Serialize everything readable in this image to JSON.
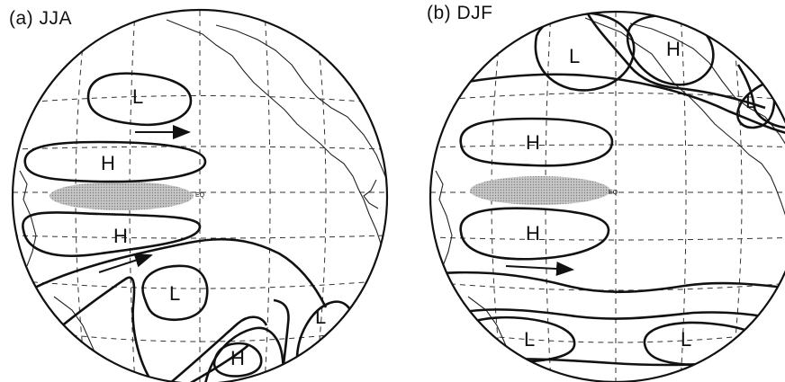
{
  "panels": [
    {
      "title": "(a) JJA",
      "highs": [
        "H",
        "H",
        "H"
      ],
      "lows": [
        "L",
        "L",
        "L"
      ],
      "equator_label": "EQ"
    },
    {
      "title": "(b) DJF",
      "highs": [
        "H",
        "H",
        "H"
      ],
      "lows": [
        "L",
        "L",
        "L",
        "L"
      ],
      "equator_label": "EQ"
    }
  ],
  "colors": {
    "line": "#111111",
    "shading": "#b0b0b0",
    "background": "#ffffff"
  }
}
